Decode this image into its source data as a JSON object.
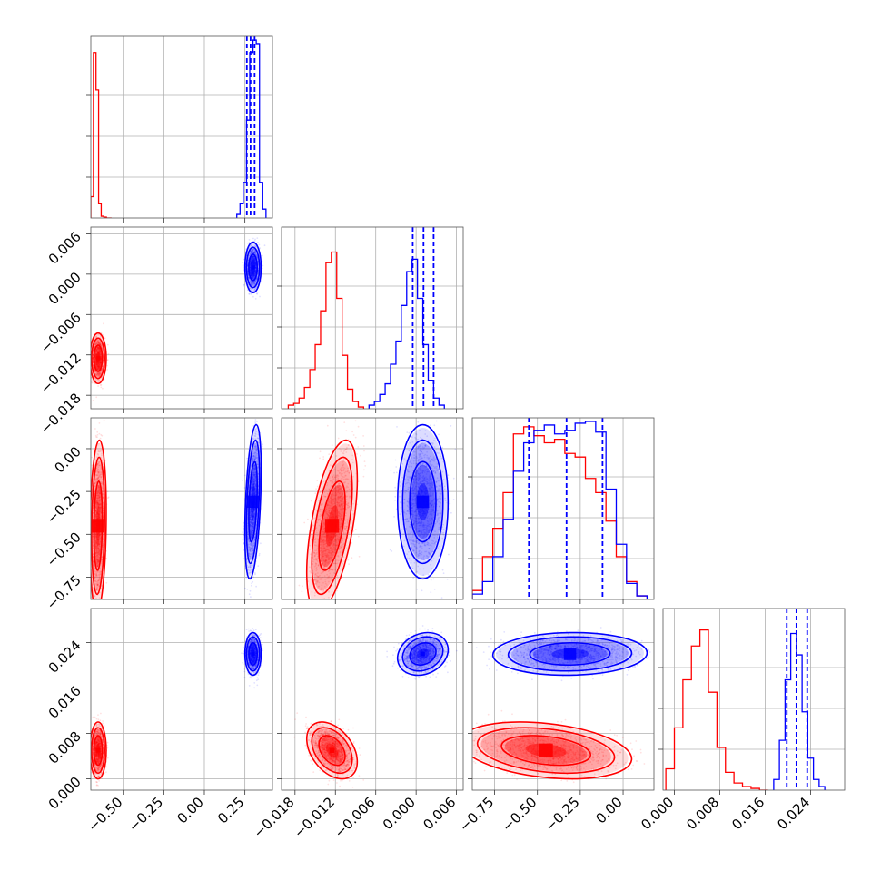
{
  "chart_data": {
    "type": "corner",
    "description_free": true,
    "series_colors": {
      "first": "#ff0000",
      "second": "#0000ff"
    },
    "grid": true,
    "dimensions": [
      {
        "ticks": [
          -0.5,
          -0.25,
          0.0,
          0.25
        ],
        "tick_labels": [
          "−0.50",
          "−0.25",
          "0.00",
          "0.25"
        ],
        "range": [
          -0.7,
          0.42
        ]
      },
      {
        "ticks": [
          -0.018,
          -0.012,
          -0.006,
          0.0,
          0.006
        ],
        "tick_labels": [
          "−0.018",
          "−0.012",
          "−0.006",
          "0.000",
          "0.006"
        ],
        "range": [
          -0.02,
          0.007
        ]
      },
      {
        "ticks": [
          -0.75,
          -0.5,
          -0.25,
          0.0
        ],
        "tick_labels": [
          "−0.75",
          "−0.50",
          "−0.25",
          "0.00"
        ],
        "range": [
          -0.88,
          0.18
        ]
      },
      {
        "ticks": [
          0.0,
          0.008,
          0.016,
          0.024
        ],
        "tick_labels": [
          "0.000",
          "0.008",
          "0.016",
          "0.024"
        ],
        "range": [
          -0.002,
          0.03
        ]
      }
    ],
    "series": [
      {
        "color": "#ff0000",
        "mean": [
          -0.655,
          -0.0125,
          -0.45,
          0.005
        ],
        "sd": [
          0.02,
          0.0015,
          0.2,
          0.002
        ],
        "corr": {
          "1-0": 0.0,
          "2-0": 0.15,
          "3-0": 0.0,
          "2-1": 0.55,
          "3-1": -0.4,
          "3-2": -0.3
        },
        "histograms": [
          {
            "bins": [
              -0.7,
              -0.684,
              -0.668,
              -0.652,
              -0.636,
              -0.62,
              -0.604,
              -0.588,
              -0.572
            ],
            "counts": [
              0.12,
              0.93,
              0.72,
              0.08,
              0.01,
              0.005,
              0.0,
              0.0
            ]
          },
          {
            "bins": [
              -0.019,
              -0.0182,
              -0.0174,
              -0.0166,
              -0.0158,
              -0.015,
              -0.0142,
              -0.0134,
              -0.0126,
              -0.0118,
              -0.011,
              -0.0102,
              -0.0094,
              -0.0086,
              -0.0078
            ],
            "counts": [
              0.02,
              0.03,
              0.06,
              0.12,
              0.22,
              0.36,
              0.55,
              0.82,
              0.88,
              0.62,
              0.3,
              0.11,
              0.04,
              0.01
            ]
          },
          {
            "bins": [
              -0.88,
              -0.82,
              -0.76,
              -0.7,
              -0.64,
              -0.58,
              -0.52,
              -0.46,
              -0.4,
              -0.34,
              -0.28,
              -0.22,
              -0.16,
              -0.1,
              -0.04,
              0.02,
              0.08,
              0.14
            ],
            "counts": [
              0.05,
              0.24,
              0.4,
              0.6,
              0.93,
              0.97,
              0.92,
              0.88,
              0.9,
              0.82,
              0.8,
              0.68,
              0.6,
              0.44,
              0.24,
              0.1,
              0.02
            ]
          },
          {
            "bins": [
              -0.0015,
              0.0,
              0.0015,
              0.003,
              0.0045,
              0.006,
              0.0075,
              0.009,
              0.0105,
              0.012,
              0.0135,
              0.015,
              0.0165
            ],
            "counts": [
              0.12,
              0.35,
              0.62,
              0.81,
              0.9,
              0.55,
              0.24,
              0.1,
              0.04,
              0.02,
              0.01,
              0.0
            ]
          }
        ]
      },
      {
        "color": "#0000ff",
        "mean": [
          0.3,
          0.001,
          -0.31,
          0.022
        ],
        "sd": [
          0.02,
          0.0015,
          0.18,
          0.0015
        ],
        "corr": {
          "1-0": 0.0,
          "2-0": 0.4,
          "3-0": 0.0,
          "2-1": 0.0,
          "3-1": 0.2,
          "3-2": 0.05
        },
        "histograms": [
          {
            "bins": [
              0.2,
              0.22,
              0.24,
              0.26,
              0.28,
              0.3,
              0.32,
              0.34,
              0.36,
              0.38
            ],
            "counts": [
              0.02,
              0.08,
              0.2,
              0.55,
              0.93,
              1.0,
              0.98,
              0.2,
              0.05
            ]
          },
          {
            "bins": [
              -0.007,
              -0.0062,
              -0.0054,
              -0.0046,
              -0.0038,
              -0.003,
              -0.0022,
              -0.0014,
              -0.0006,
              0.0002,
              0.001,
              0.0018,
              0.0026,
              0.0034,
              0.0042
            ],
            "counts": [
              0.02,
              0.04,
              0.08,
              0.14,
              0.25,
              0.38,
              0.58,
              0.77,
              0.84,
              0.62,
              0.36,
              0.16,
              0.06,
              0.02
            ]
          },
          {
            "bins": [
              -0.88,
              -0.82,
              -0.76,
              -0.7,
              -0.64,
              -0.58,
              -0.52,
              -0.46,
              -0.4,
              -0.34,
              -0.28,
              -0.22,
              -0.16,
              -0.1,
              -0.04,
              0.02,
              0.08,
              0.14
            ],
            "counts": [
              0.03,
              0.1,
              0.24,
              0.45,
              0.72,
              0.88,
              0.95,
              0.98,
              0.93,
              0.95,
              0.99,
              1.0,
              0.94,
              0.62,
              0.31,
              0.09,
              0.02
            ]
          },
          {
            "bins": [
              0.0175,
              0.0185,
              0.0195,
              0.0205,
              0.0215,
              0.0225,
              0.0235,
              0.0245,
              0.0255,
              0.0265
            ],
            "counts": [
              0.06,
              0.28,
              0.62,
              0.88,
              0.76,
              0.44,
              0.18,
              0.06,
              0.02
            ]
          }
        ],
        "quantiles": [
          [
            0.262,
            0.285,
            0.31
          ],
          [
            -0.0005,
            0.0011,
            0.0026
          ],
          [
            -0.55,
            -0.33,
            -0.12
          ],
          [
            0.0198,
            0.0215,
            0.0234
          ]
        ]
      }
    ]
  }
}
